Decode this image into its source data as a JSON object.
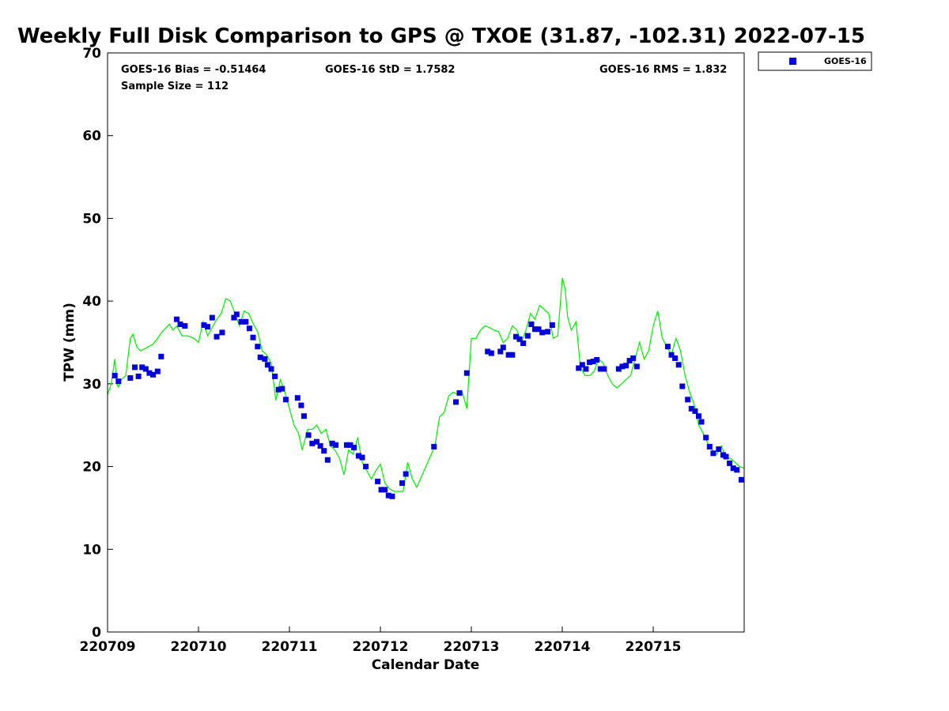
{
  "chart_data": {
    "type": "scatter",
    "title": "Weekly Full Disk Comparison to GPS @ TXOE (31.87, -102.31) 2022-07-15",
    "xlabel": "Calendar Date",
    "ylabel": "TPW (mm)",
    "ylim": [
      0,
      70
    ],
    "yticks": [
      0,
      10,
      20,
      30,
      40,
      50,
      60,
      70
    ],
    "xlim": [
      0,
      7.0
    ],
    "xticks": [
      {
        "value": 0,
        "label": "220709"
      },
      {
        "value": 1,
        "label": "220710"
      },
      {
        "value": 2,
        "label": "220711"
      },
      {
        "value": 3,
        "label": "220712"
      },
      {
        "value": 4,
        "label": "220713"
      },
      {
        "value": 5,
        "label": "220714"
      },
      {
        "value": 6,
        "label": "220715"
      }
    ],
    "stats": {
      "bias": "GOES-16 Bias = -0.51464",
      "std": "GOES-16 StD = 1.7582",
      "rms": "GOES-16 RMS = 1.832",
      "sample": "Sample Size = 112"
    },
    "legend": {
      "position": "top-right",
      "entries": [
        "GOES-16"
      ]
    },
    "colors": {
      "goes": "#0000dd",
      "gps": "#00ee00"
    },
    "series": [
      {
        "name": "GOES-16",
        "kind": "markers",
        "x": [
          0.08,
          0.12,
          0.25,
          0.3,
          0.34,
          0.38,
          0.42,
          0.46,
          0.5,
          0.55,
          0.59,
          0.76,
          0.8,
          0.85,
          1.06,
          1.1,
          1.15,
          1.2,
          1.26,
          1.39,
          1.42,
          1.47,
          1.52,
          1.56,
          1.6,
          1.65,
          1.68,
          1.73,
          1.76,
          1.8,
          1.84,
          1.88,
          1.92,
          1.96,
          2.09,
          2.13,
          2.16,
          2.21,
          2.25,
          2.3,
          2.34,
          2.38,
          2.42,
          2.47,
          2.51,
          2.63,
          2.67,
          2.71,
          2.76,
          2.8,
          2.84,
          2.97,
          3.01,
          3.05,
          3.09,
          3.13,
          3.24,
          3.28,
          3.59,
          3.83,
          3.87,
          3.95,
          4.18,
          4.22,
          4.32,
          4.35,
          4.41,
          4.45,
          4.49,
          4.53,
          4.57,
          4.62,
          4.66,
          4.7,
          4.74,
          4.78,
          4.84,
          4.89,
          5.18,
          5.22,
          5.26,
          5.3,
          5.34,
          5.38,
          5.42,
          5.46,
          5.62,
          5.66,
          5.7,
          5.74,
          5.78,
          5.82,
          6.16,
          6.2,
          6.24,
          6.28,
          6.32,
          6.38,
          6.42,
          6.46,
          6.5,
          6.53,
          6.58,
          6.62,
          6.66,
          6.72,
          6.77,
          6.8,
          6.84,
          6.88,
          6.92,
          6.97
        ],
        "y": [
          31.0,
          30.3,
          30.7,
          32.0,
          30.9,
          32.0,
          31.8,
          31.3,
          31.1,
          31.5,
          33.3,
          37.8,
          37.2,
          37.0,
          37.1,
          36.9,
          38.0,
          35.7,
          36.2,
          38.0,
          38.4,
          37.5,
          37.5,
          36.7,
          35.6,
          34.5,
          33.2,
          33.0,
          32.3,
          31.8,
          30.9,
          29.3,
          29.4,
          28.1,
          28.3,
          27.4,
          26.1,
          23.8,
          22.8,
          23.0,
          22.5,
          21.9,
          20.8,
          22.8,
          22.6,
          22.6,
          22.6,
          22.3,
          21.3,
          21.1,
          20.0,
          18.2,
          17.2,
          17.2,
          16.5,
          16.4,
          18.0,
          19.1,
          22.4,
          27.8,
          28.9,
          31.3,
          33.9,
          33.7,
          33.9,
          34.4,
          33.5,
          33.5,
          35.7,
          35.4,
          34.9,
          35.8,
          37.2,
          36.6,
          36.6,
          36.2,
          36.3,
          37.1,
          31.9,
          32.3,
          31.8,
          32.6,
          32.7,
          32.9,
          31.8,
          31.8,
          31.8,
          32.1,
          32.2,
          32.8,
          33.1,
          32.1,
          34.5,
          33.5,
          33.1,
          32.3,
          29.7,
          28.1,
          27.0,
          26.7,
          26.1,
          25.4,
          23.5,
          22.4,
          21.6,
          22.1,
          21.4,
          21.2,
          20.4,
          19.8,
          19.6,
          18.4
        ]
      },
      {
        "name": "GPS",
        "kind": "line",
        "x": [
          0,
          0.04,
          0.08,
          0.1,
          0.12,
          0.15,
          0.2,
          0.25,
          0.28,
          0.32,
          0.36,
          0.42,
          0.5,
          0.55,
          0.6,
          0.68,
          0.72,
          0.76,
          0.82,
          0.88,
          0.95,
          1.0,
          1.05,
          1.1,
          1.15,
          1.2,
          1.25,
          1.3,
          1.35,
          1.4,
          1.45,
          1.5,
          1.55,
          1.6,
          1.65,
          1.7,
          1.75,
          1.8,
          1.85,
          1.9,
          1.95,
          2.0,
          2.05,
          2.1,
          2.14,
          2.2,
          2.25,
          2.3,
          2.35,
          2.4,
          2.45,
          2.5,
          2.55,
          2.6,
          2.65,
          2.7,
          2.75,
          2.8,
          2.85,
          2.9,
          2.95,
          3.0,
          3.05,
          3.1,
          3.15,
          3.2,
          3.25,
          3.3,
          3.35,
          3.4,
          3.5,
          3.6,
          3.65,
          3.7,
          3.75,
          3.8,
          3.85,
          3.9,
          3.95,
          4.0,
          4.05,
          4.1,
          4.15,
          4.2,
          4.25,
          4.3,
          4.35,
          4.4,
          4.45,
          4.5,
          4.55,
          4.6,
          4.65,
          4.7,
          4.75,
          4.8,
          4.85,
          4.9,
          4.95,
          5.0,
          5.03,
          5.06,
          5.1,
          5.15,
          5.2,
          5.25,
          5.3,
          5.35,
          5.4,
          5.45,
          5.5,
          5.55,
          5.6,
          5.65,
          5.7,
          5.75,
          5.8,
          5.85,
          5.9,
          5.95,
          6.0,
          6.05,
          6.1,
          6.15,
          6.2,
          6.25,
          6.3,
          6.35,
          6.4,
          6.45,
          6.5,
          6.55,
          6.6,
          6.65,
          6.7,
          6.75,
          6.8,
          6.85,
          6.9,
          6.95,
          7.0
        ],
        "y": [
          28.7,
          30.0,
          33.0,
          30.0,
          29.6,
          30.5,
          31.0,
          35.5,
          36.0,
          34.5,
          34.0,
          34.3,
          34.8,
          35.5,
          36.3,
          37.2,
          36.5,
          37.0,
          35.8,
          35.8,
          35.5,
          35.0,
          37.5,
          35.8,
          36.8,
          37.8,
          38.5,
          40.3,
          40.0,
          38.5,
          37.0,
          38.8,
          38.5,
          37.3,
          36.3,
          34.0,
          33.5,
          32.5,
          28.0,
          30.5,
          29.0,
          27.0,
          25.0,
          24.0,
          22.0,
          24.5,
          24.5,
          25.0,
          24.0,
          24.5,
          22.5,
          22.0,
          21.0,
          19.0,
          22.0,
          21.5,
          23.5,
          20.5,
          19.5,
          18.5,
          19.5,
          20.3,
          18.0,
          17.3,
          17.0,
          17.0,
          17.0,
          20.5,
          18.5,
          17.5,
          20.0,
          22.5,
          26.0,
          26.5,
          28.5,
          29.0,
          28.7,
          29.0,
          27.0,
          35.5,
          35.5,
          36.5,
          37.0,
          36.8,
          36.5,
          36.3,
          35.0,
          35.5,
          37.0,
          36.5,
          35.0,
          36.5,
          38.5,
          37.8,
          39.5,
          39.0,
          38.5,
          35.5,
          35.8,
          42.8,
          41.5,
          38.0,
          36.5,
          37.5,
          32.0,
          31.0,
          31.0,
          31.5,
          33.0,
          32.5,
          31.0,
          30.0,
          29.5,
          30.0,
          30.5,
          31.0,
          33.0,
          35.0,
          33.0,
          34.0,
          37.0,
          38.8,
          35.5,
          34.5,
          33.5,
          35.5,
          34.0,
          31.0,
          29.0,
          27.5,
          25.0,
          24.0,
          22.8,
          22.0,
          21.5,
          22.5,
          21.0,
          21.0,
          20.5,
          20.0,
          19.8
        ]
      }
    ]
  }
}
